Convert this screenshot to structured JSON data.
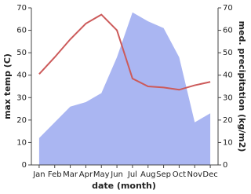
{
  "chart_data": {
    "type": "line-area",
    "x_label": "date (month)",
    "y_label": "max temp (C)",
    "y2_label": "med. precipitation (kg/m2)",
    "categories": [
      "Jan",
      "Feb",
      "Mar",
      "Apr",
      "May",
      "Jun",
      "Jul",
      "Aug",
      "Sep",
      "Oct",
      "Nov",
      "Dec"
    ],
    "ylim": [
      0,
      70
    ],
    "yticks": [
      0,
      10,
      20,
      30,
      40,
      50,
      60,
      70
    ],
    "y2lim": [
      0,
      70
    ],
    "y2ticks": [
      0,
      10,
      20,
      30,
      40,
      50,
      60,
      70
    ],
    "series": [
      {
        "name": "med. precipitation",
        "type": "area",
        "axis": "y2",
        "color": "#aab6f2",
        "values": [
          12,
          19,
          26,
          28,
          32,
          48,
          68,
          64,
          61,
          48,
          19,
          23
        ]
      },
      {
        "name": "max temp",
        "type": "line",
        "color": "#cc5a5a",
        "values": [
          40.5,
          48,
          56,
          63,
          67,
          60,
          38.5,
          35,
          34.5,
          33.5,
          35.5,
          37
        ]
      }
    ]
  }
}
